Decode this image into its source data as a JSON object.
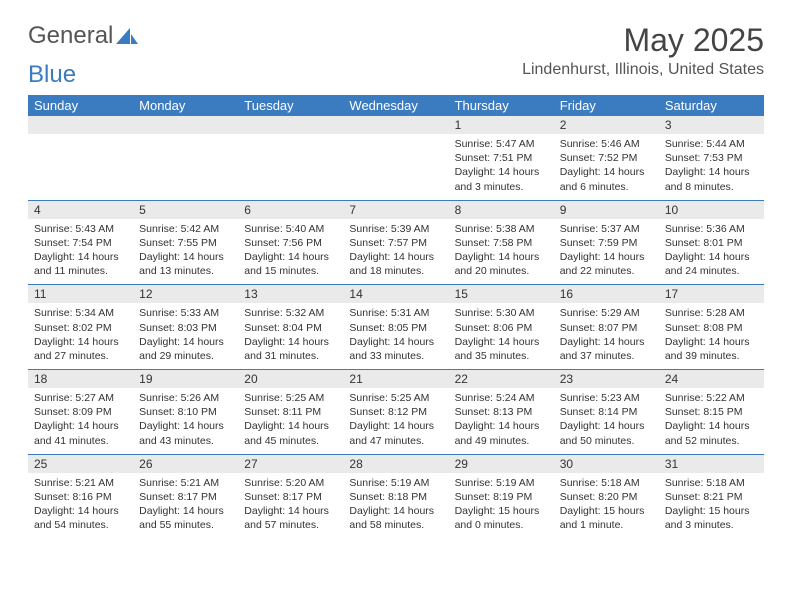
{
  "logo": {
    "text1": "General",
    "text2": "Blue"
  },
  "title": "May 2025",
  "location": "Lindenhurst, Illinois, United States",
  "header_color": "#3b7bbf",
  "dayNames": [
    "Sunday",
    "Monday",
    "Tuesday",
    "Wednesday",
    "Thursday",
    "Friday",
    "Saturday"
  ],
  "weeks": [
    [
      null,
      null,
      null,
      null,
      {
        "n": "1",
        "sr": "5:47 AM",
        "ss": "7:51 PM",
        "dl": "14 hours and 3 minutes."
      },
      {
        "n": "2",
        "sr": "5:46 AM",
        "ss": "7:52 PM",
        "dl": "14 hours and 6 minutes."
      },
      {
        "n": "3",
        "sr": "5:44 AM",
        "ss": "7:53 PM",
        "dl": "14 hours and 8 minutes."
      }
    ],
    [
      {
        "n": "4",
        "sr": "5:43 AM",
        "ss": "7:54 PM",
        "dl": "14 hours and 11 minutes."
      },
      {
        "n": "5",
        "sr": "5:42 AM",
        "ss": "7:55 PM",
        "dl": "14 hours and 13 minutes."
      },
      {
        "n": "6",
        "sr": "5:40 AM",
        "ss": "7:56 PM",
        "dl": "14 hours and 15 minutes."
      },
      {
        "n": "7",
        "sr": "5:39 AM",
        "ss": "7:57 PM",
        "dl": "14 hours and 18 minutes."
      },
      {
        "n": "8",
        "sr": "5:38 AM",
        "ss": "7:58 PM",
        "dl": "14 hours and 20 minutes."
      },
      {
        "n": "9",
        "sr": "5:37 AM",
        "ss": "7:59 PM",
        "dl": "14 hours and 22 minutes."
      },
      {
        "n": "10",
        "sr": "5:36 AM",
        "ss": "8:01 PM",
        "dl": "14 hours and 24 minutes."
      }
    ],
    [
      {
        "n": "11",
        "sr": "5:34 AM",
        "ss": "8:02 PM",
        "dl": "14 hours and 27 minutes."
      },
      {
        "n": "12",
        "sr": "5:33 AM",
        "ss": "8:03 PM",
        "dl": "14 hours and 29 minutes."
      },
      {
        "n": "13",
        "sr": "5:32 AM",
        "ss": "8:04 PM",
        "dl": "14 hours and 31 minutes."
      },
      {
        "n": "14",
        "sr": "5:31 AM",
        "ss": "8:05 PM",
        "dl": "14 hours and 33 minutes."
      },
      {
        "n": "15",
        "sr": "5:30 AM",
        "ss": "8:06 PM",
        "dl": "14 hours and 35 minutes."
      },
      {
        "n": "16",
        "sr": "5:29 AM",
        "ss": "8:07 PM",
        "dl": "14 hours and 37 minutes."
      },
      {
        "n": "17",
        "sr": "5:28 AM",
        "ss": "8:08 PM",
        "dl": "14 hours and 39 minutes."
      }
    ],
    [
      {
        "n": "18",
        "sr": "5:27 AM",
        "ss": "8:09 PM",
        "dl": "14 hours and 41 minutes."
      },
      {
        "n": "19",
        "sr": "5:26 AM",
        "ss": "8:10 PM",
        "dl": "14 hours and 43 minutes."
      },
      {
        "n": "20",
        "sr": "5:25 AM",
        "ss": "8:11 PM",
        "dl": "14 hours and 45 minutes."
      },
      {
        "n": "21",
        "sr": "5:25 AM",
        "ss": "8:12 PM",
        "dl": "14 hours and 47 minutes."
      },
      {
        "n": "22",
        "sr": "5:24 AM",
        "ss": "8:13 PM",
        "dl": "14 hours and 49 minutes."
      },
      {
        "n": "23",
        "sr": "5:23 AM",
        "ss": "8:14 PM",
        "dl": "14 hours and 50 minutes."
      },
      {
        "n": "24",
        "sr": "5:22 AM",
        "ss": "8:15 PM",
        "dl": "14 hours and 52 minutes."
      }
    ],
    [
      {
        "n": "25",
        "sr": "5:21 AM",
        "ss": "8:16 PM",
        "dl": "14 hours and 54 minutes."
      },
      {
        "n": "26",
        "sr": "5:21 AM",
        "ss": "8:17 PM",
        "dl": "14 hours and 55 minutes."
      },
      {
        "n": "27",
        "sr": "5:20 AM",
        "ss": "8:17 PM",
        "dl": "14 hours and 57 minutes."
      },
      {
        "n": "28",
        "sr": "5:19 AM",
        "ss": "8:18 PM",
        "dl": "14 hours and 58 minutes."
      },
      {
        "n": "29",
        "sr": "5:19 AM",
        "ss": "8:19 PM",
        "dl": "15 hours and 0 minutes."
      },
      {
        "n": "30",
        "sr": "5:18 AM",
        "ss": "8:20 PM",
        "dl": "15 hours and 1 minute."
      },
      {
        "n": "31",
        "sr": "5:18 AM",
        "ss": "8:21 PM",
        "dl": "15 hours and 3 minutes."
      }
    ]
  ],
  "labels": {
    "sunrise": "Sunrise: ",
    "sunset": "Sunset: ",
    "daylight": "Daylight: "
  }
}
